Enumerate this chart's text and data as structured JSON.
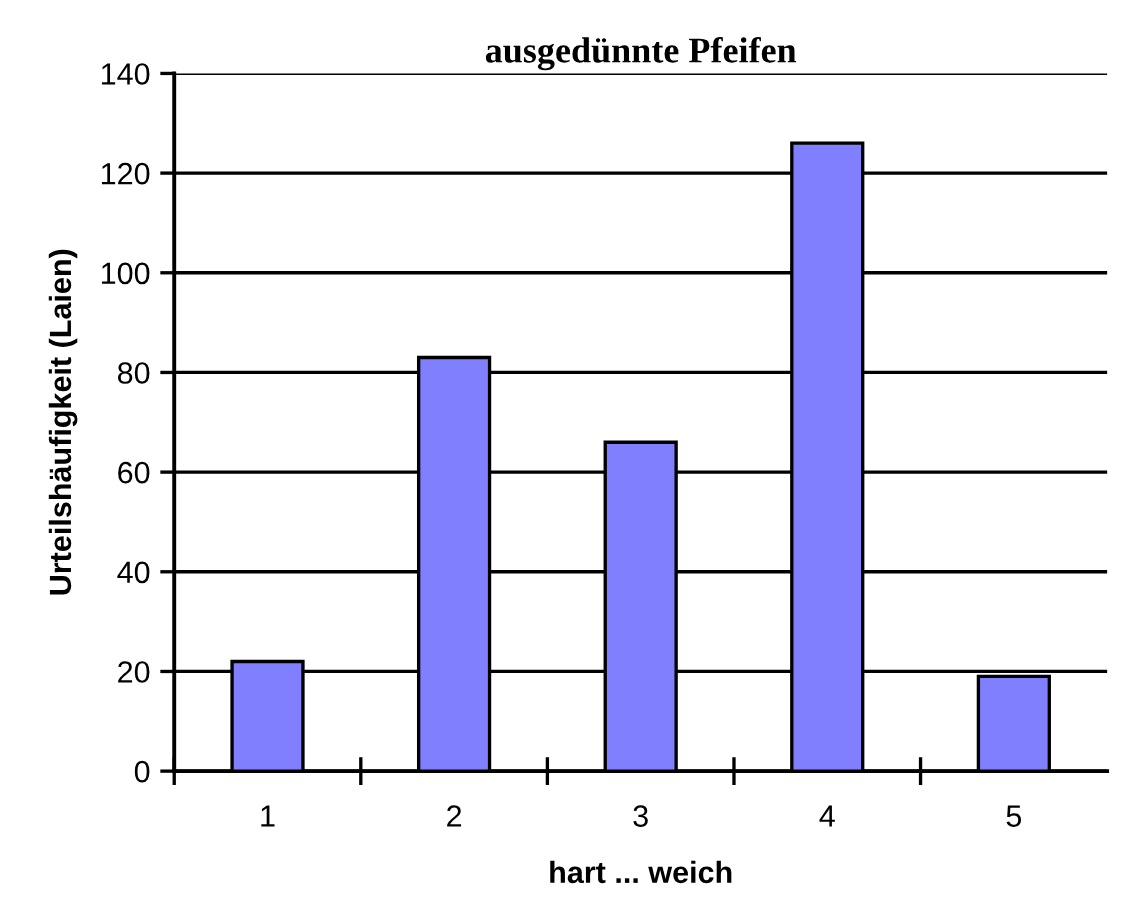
{
  "chart_data": {
    "type": "bar",
    "title": "ausgedünnte Pfeifen",
    "xlabel": "hart ... weich",
    "ylabel": "Urteilshäufigkeit (Laien)",
    "categories": [
      "1",
      "2",
      "3",
      "4",
      "5"
    ],
    "values": [
      22,
      83,
      66,
      126,
      19
    ],
    "color": "#8080ff",
    "ylim": [
      0,
      140
    ],
    "yticks": [
      0,
      20,
      40,
      60,
      80,
      100,
      120,
      140
    ],
    "grid": "y"
  }
}
